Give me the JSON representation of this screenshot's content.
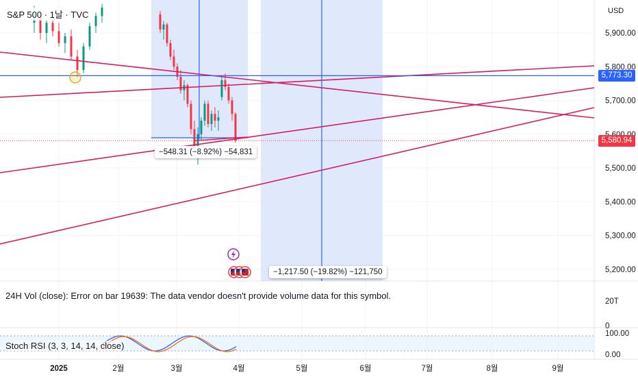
{
  "header": {
    "symbol_line": "S&P 500 · 1날 · TVC",
    "currency": "USD"
  },
  "colors": {
    "up": "#089981",
    "down": "#f23645",
    "trendline": "#d81b60",
    "crosshair": "#2962ff",
    "range_fill": "#dbe4fb",
    "stoch_k": "#2962ff",
    "stoch_d": "#ff6d00",
    "last_price_tag": "#f23645",
    "crosshair_tag": "#2962ff"
  },
  "price_axis": {
    "labels": [
      "5,900.00",
      "5,800.00",
      "5,700.00",
      "5,600.00",
      "5,500.00",
      "5,400.00",
      "5,300.00",
      "5,200.00"
    ],
    "values": [
      5900,
      5800,
      5700,
      5600,
      5500,
      5400,
      5300,
      5200
    ],
    "crosshair_price": "5,773.30",
    "last_price": "5,580.94"
  },
  "time_axis": {
    "labels": [
      {
        "text": "2025",
        "bold": true
      },
      {
        "text": "2월",
        "bold": false
      },
      {
        "text": "3월",
        "bold": false
      },
      {
        "text": "4월",
        "bold": false
      },
      {
        "text": "5월",
        "bold": false
      },
      {
        "text": "6월",
        "bold": false
      },
      {
        "text": "7월",
        "bold": false
      },
      {
        "text": "8월",
        "bold": false
      },
      {
        "text": "9월",
        "bold": false
      }
    ]
  },
  "measurements": [
    {
      "text": "−548.31 (−8.92%) −54,831"
    },
    {
      "text": "−1,217.50 (−19.82%) −121,750"
    }
  ],
  "volume_pane": {
    "message": "24H Vol (close): Error on bar 19639: The data vendor doesn't provide volume data for this symbol.",
    "axis_labels": [
      "20T",
      "0"
    ]
  },
  "stoch_pane": {
    "title": "Stoch RSI (3, 3, 14, 14, close)",
    "axis_labels": [
      "100.00",
      "0.00"
    ]
  },
  "chart_data": {
    "type": "candlestick",
    "visible_range": "2025-01 to 2025-09",
    "ylim": [
      5150,
      5990
    ],
    "candles_march_2025": [
      {
        "o": 5955,
        "h": 5965,
        "l": 5900,
        "c": 5910
      },
      {
        "o": 5910,
        "h": 5935,
        "l": 5880,
        "c": 5925
      },
      {
        "o": 5925,
        "h": 5930,
        "l": 5860,
        "c": 5870
      },
      {
        "o": 5870,
        "h": 5880,
        "l": 5820,
        "c": 5830
      },
      {
        "o": 5830,
        "h": 5850,
        "l": 5790,
        "c": 5800
      },
      {
        "o": 5800,
        "h": 5810,
        "l": 5760,
        "c": 5770
      },
      {
        "o": 5770,
        "h": 5790,
        "l": 5720,
        "c": 5730
      },
      {
        "o": 5730,
        "h": 5760,
        "l": 5700,
        "c": 5745
      },
      {
        "o": 5745,
        "h": 5750,
        "l": 5680,
        "c": 5690
      },
      {
        "o": 5690,
        "h": 5700,
        "l": 5600,
        "c": 5615
      },
      {
        "o": 5615,
        "h": 5640,
        "l": 5540,
        "c": 5560
      },
      {
        "o": 5560,
        "h": 5620,
        "l": 5510,
        "c": 5600
      },
      {
        "o": 5600,
        "h": 5650,
        "l": 5580,
        "c": 5640
      },
      {
        "o": 5640,
        "h": 5700,
        "l": 5625,
        "c": 5690
      },
      {
        "o": 5690,
        "h": 5700,
        "l": 5620,
        "c": 5630
      },
      {
        "o": 5630,
        "h": 5670,
        "l": 5610,
        "c": 5660
      },
      {
        "o": 5660,
        "h": 5680,
        "l": 5620,
        "c": 5640
      },
      {
        "o": 5640,
        "h": 5670,
        "l": 5610,
        "c": 5650
      },
      {
        "o": 5710,
        "h": 5770,
        "l": 5700,
        "c": 5760
      },
      {
        "o": 5760,
        "h": 5780,
        "l": 5730,
        "c": 5740
      },
      {
        "o": 5740,
        "h": 5750,
        "l": 5690,
        "c": 5700
      },
      {
        "o": 5700,
        "h": 5710,
        "l": 5640,
        "c": 5660
      },
      {
        "o": 5660,
        "h": 5665,
        "l": 5575,
        "c": 5581
      }
    ],
    "candles_january_2025": [
      {
        "o": 5930,
        "h": 5980,
        "l": 5900,
        "c": 5960
      },
      {
        "o": 5960,
        "h": 5970,
        "l": 5880,
        "c": 5900
      },
      {
        "o": 5900,
        "h": 5940,
        "l": 5870,
        "c": 5930
      },
      {
        "o": 5930,
        "h": 5950,
        "l": 5890,
        "c": 5905
      },
      {
        "o": 5905,
        "h": 5930,
        "l": 5860,
        "c": 5870
      },
      {
        "o": 5870,
        "h": 5900,
        "l": 5840,
        "c": 5890
      },
      {
        "o": 5890,
        "h": 5910,
        "l": 5820,
        "c": 5830
      },
      {
        "o": 5830,
        "h": 5850,
        "l": 5770,
        "c": 5790
      },
      {
        "o": 5790,
        "h": 5870,
        "l": 5780,
        "c": 5860
      },
      {
        "o": 5860,
        "h": 5930,
        "l": 5850,
        "c": 5920
      },
      {
        "o": 5920,
        "h": 5960,
        "l": 5900,
        "c": 5950
      },
      {
        "o": 5950,
        "h": 5985,
        "l": 5930,
        "c": 5975
      }
    ]
  }
}
